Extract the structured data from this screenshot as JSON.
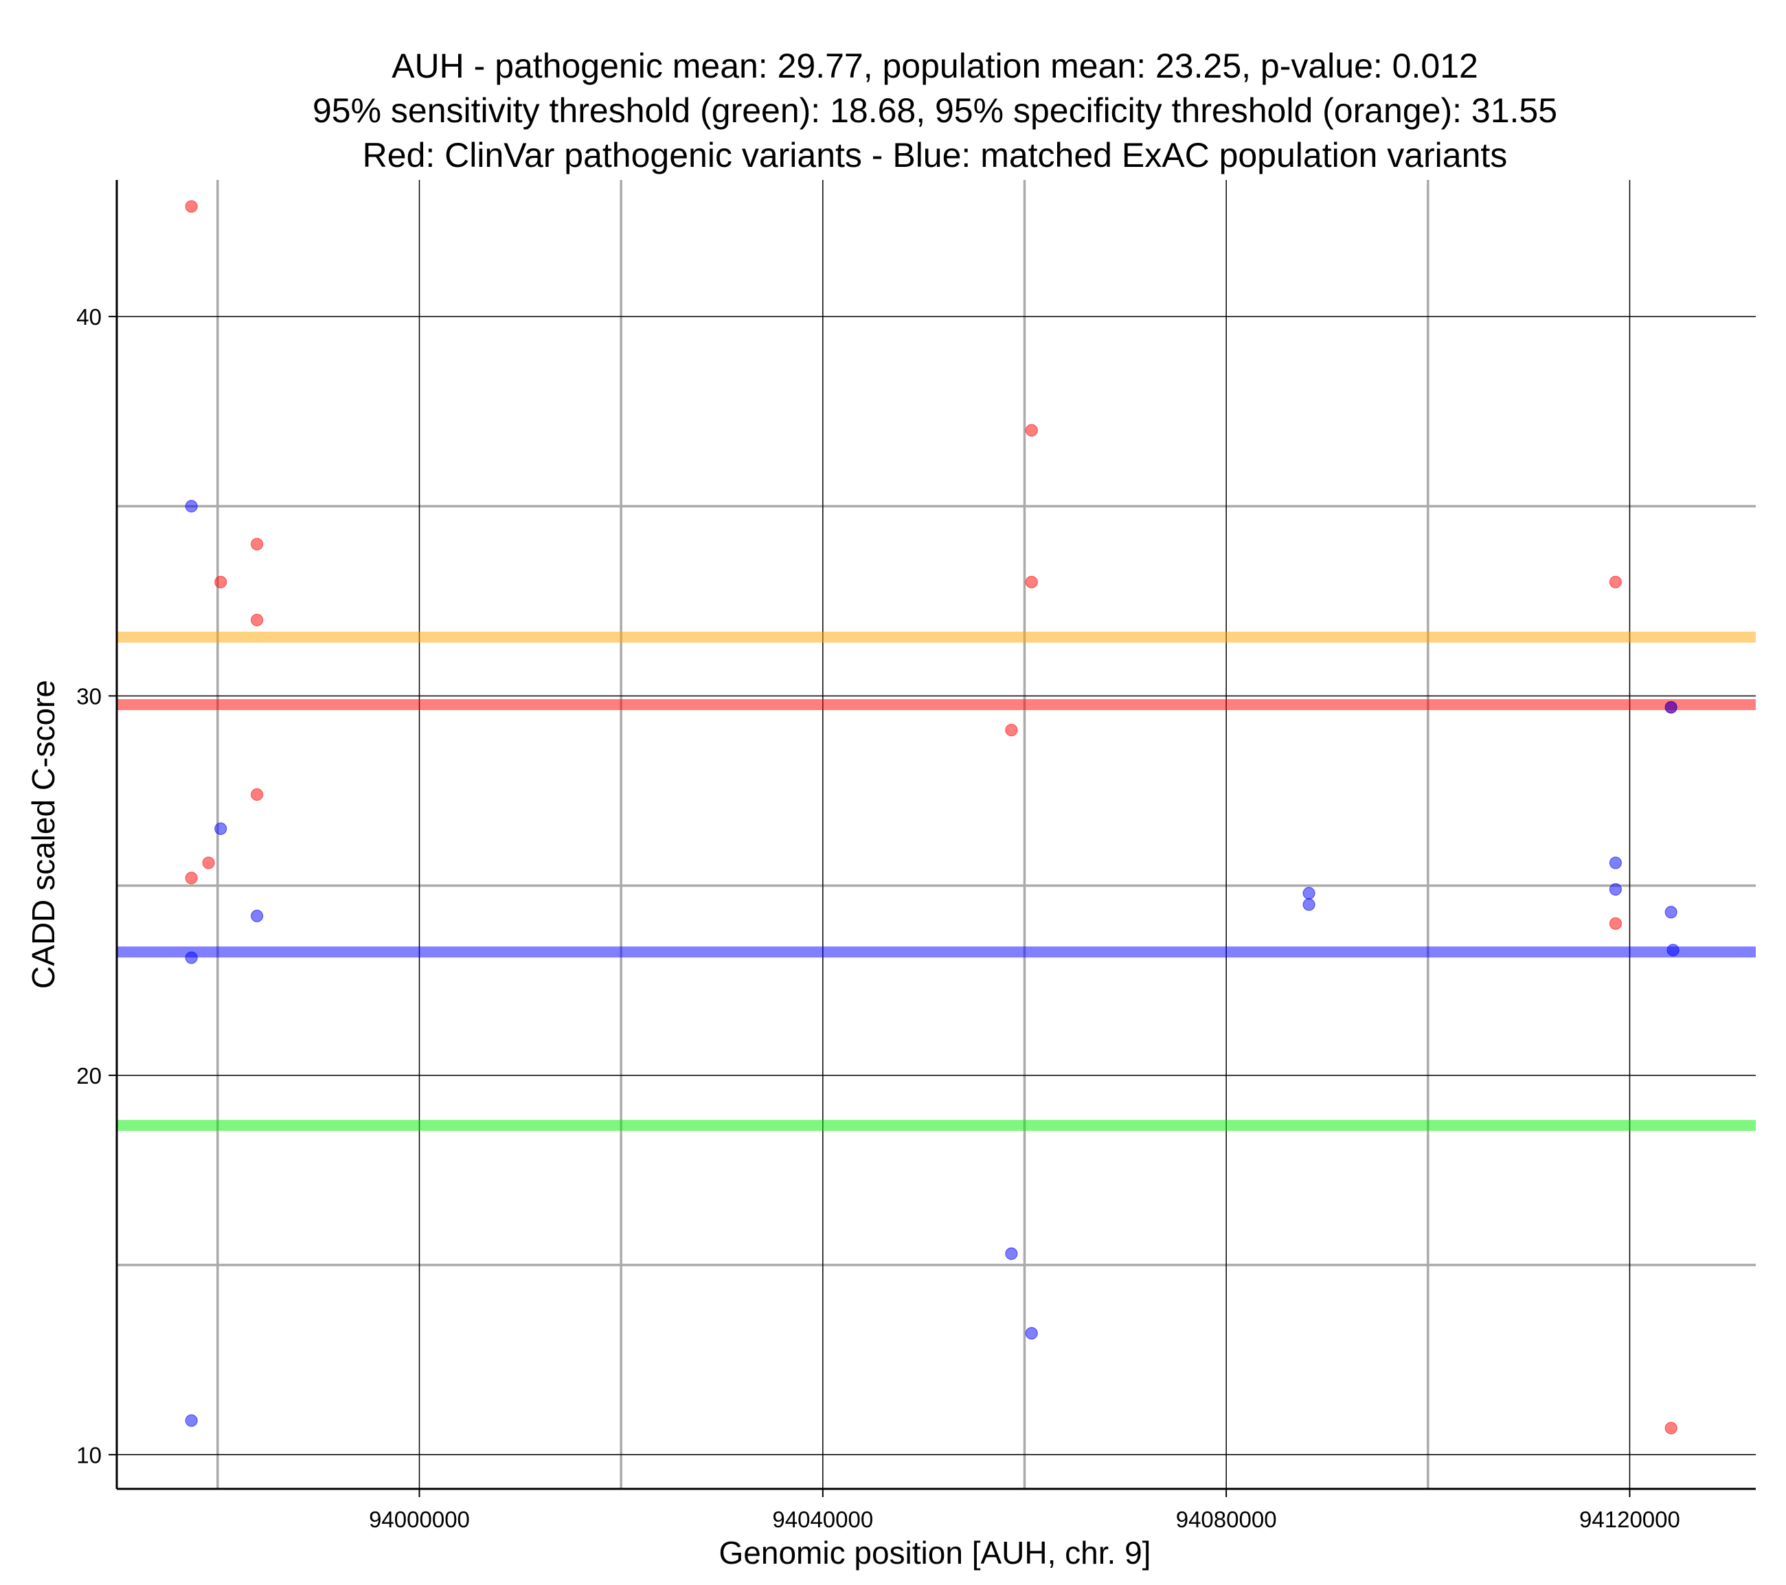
{
  "chart_data": {
    "type": "scatter",
    "title_lines": [
      "AUH - pathogenic mean: 29.77, population mean: 23.25, p-value: 0.012",
      "95% sensitivity threshold (green): 18.68, 95% specificity threshold (orange): 31.55",
      "Red: ClinVar pathogenic variants - Blue: matched ExAC population variants"
    ],
    "xlabel": "Genomic position [AUH, chr. 9]",
    "ylabel": "CADD scaled C-score",
    "xlim": [
      93970000,
      94132500
    ],
    "ylim": [
      9.1,
      43.6
    ],
    "x_major_ticks": [
      94000000,
      94040000,
      94080000,
      94120000
    ],
    "x_tick_labels": [
      "94000000",
      "94040000",
      "94080000",
      "94120000"
    ],
    "x_minor_gridlines": [
      93980000,
      94020000,
      94060000,
      94100000
    ],
    "y_major_ticks": [
      10,
      20,
      30,
      40
    ],
    "y_tick_labels": [
      "10",
      "20",
      "30",
      "40"
    ],
    "y_minor_gridlines": [
      15,
      25,
      35
    ],
    "grid": true,
    "colors": {
      "pathogenic": "#ff0000",
      "population": "#0000ff",
      "sensitivity": "#00ee00",
      "specificity": "#ffa500",
      "major_grid": "#000000",
      "minor_grid": "#aaaaaa"
    },
    "hlines": [
      {
        "name": "specificity threshold",
        "value": 31.55,
        "color": "#ffa500"
      },
      {
        "name": "pathogenic mean",
        "value": 29.77,
        "color": "#ff0000"
      },
      {
        "name": "population mean",
        "value": 23.25,
        "color": "#0000ff"
      },
      {
        "name": "sensitivity threshold",
        "value": 18.68,
        "color": "#00ee00"
      }
    ],
    "series": [
      {
        "name": "ClinVar pathogenic variants",
        "color": "#ff0000",
        "points": [
          {
            "x": 93977400,
            "y": 42.9
          },
          {
            "x": 93977400,
            "y": 25.2
          },
          {
            "x": 93979100,
            "y": 25.6
          },
          {
            "x": 93980300,
            "y": 33.0
          },
          {
            "x": 93983900,
            "y": 34.0
          },
          {
            "x": 93983900,
            "y": 32.0
          },
          {
            "x": 93983900,
            "y": 27.4
          },
          {
            "x": 94058700,
            "y": 29.1
          },
          {
            "x": 94060700,
            "y": 37.0
          },
          {
            "x": 94060700,
            "y": 33.0
          },
          {
            "x": 94118600,
            "y": 33.0
          },
          {
            "x": 94118600,
            "y": 24.0
          },
          {
            "x": 94124100,
            "y": 10.7
          },
          {
            "x": 94124100,
            "y": 29.7
          }
        ]
      },
      {
        "name": "matched ExAC population variants",
        "color": "#0000ff",
        "points": [
          {
            "x": 93977400,
            "y": 35.0
          },
          {
            "x": 93977400,
            "y": 23.1
          },
          {
            "x": 93977400,
            "y": 10.9
          },
          {
            "x": 93980300,
            "y": 26.5
          },
          {
            "x": 93983900,
            "y": 24.2
          },
          {
            "x": 94058700,
            "y": 15.3
          },
          {
            "x": 94060700,
            "y": 13.2
          },
          {
            "x": 94088200,
            "y": 24.8
          },
          {
            "x": 94088200,
            "y": 24.5
          },
          {
            "x": 94118600,
            "y": 25.6
          },
          {
            "x": 94118600,
            "y": 24.9
          },
          {
            "x": 94124100,
            "y": 24.3
          },
          {
            "x": 94124300,
            "y": 23.3
          },
          {
            "x": 94124100,
            "y": 29.7
          }
        ]
      }
    ]
  }
}
